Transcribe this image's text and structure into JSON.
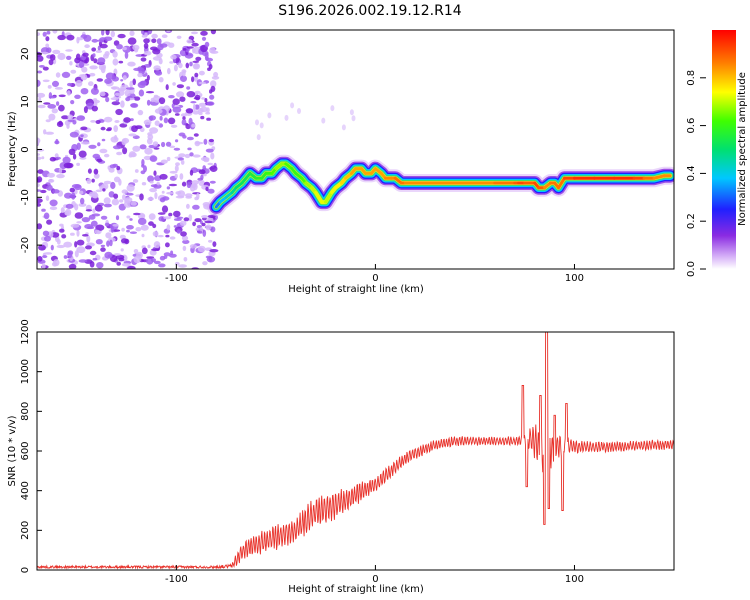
{
  "chart_data": [
    {
      "type": "heatmap",
      "title": "S196.2026.002.19.12.R14",
      "xlabel": "Height of straight line (km)",
      "ylabel": "Frequency (Hz)",
      "xlim": [
        -170,
        150
      ],
      "ylim": [
        -25,
        25
      ],
      "xticks": [
        -100,
        0,
        100
      ],
      "yticks": [
        -20,
        -10,
        0,
        10,
        20
      ],
      "noise_region_x": [
        -170,
        -80
      ],
      "ridge": {
        "x": [
          -80,
          -78,
          -75,
          -72,
          -70,
          -67,
          -65,
          -63,
          -60,
          -57,
          -55,
          -52,
          -50,
          -47,
          -45,
          -42,
          -40,
          -37,
          -35,
          -32,
          -30,
          -27,
          -25,
          -22,
          -20,
          -17,
          -15,
          -12,
          -10,
          -7,
          -5,
          -2,
          0,
          3,
          5,
          8,
          10,
          13,
          15,
          20,
          30,
          40,
          50,
          60,
          65,
          70,
          72,
          75,
          78,
          80,
          82,
          85,
          88,
          90,
          92,
          95,
          100,
          110,
          120,
          130,
          135,
          140,
          145,
          148
        ],
        "y": [
          -12,
          -11,
          -10,
          -9,
          -8,
          -7,
          -6,
          -5,
          -6,
          -6,
          -5,
          -5,
          -4,
          -3,
          -3,
          -4,
          -5,
          -6,
          -7,
          -8,
          -9,
          -11,
          -11,
          -9,
          -8,
          -7,
          -6,
          -5,
          -4,
          -4,
          -5,
          -5,
          -4,
          -5,
          -6,
          -6,
          -6,
          -7,
          -7,
          -7,
          -7,
          -7,
          -7,
          -7,
          -7,
          -7,
          -7,
          -7,
          -7,
          -7,
          -8,
          -8,
          -7,
          -7,
          -8,
          -6,
          -6,
          -6,
          -6,
          -6,
          -6,
          -6,
          -5.5,
          -5.5
        ],
        "amplitude": [
          0.3,
          0.35,
          0.4,
          0.45,
          0.5,
          0.5,
          0.55,
          0.5,
          0.6,
          0.55,
          0.6,
          0.6,
          0.65,
          0.7,
          0.65,
          0.6,
          0.6,
          0.6,
          0.65,
          0.7,
          0.7,
          0.75,
          0.7,
          0.7,
          0.75,
          0.75,
          0.8,
          0.8,
          0.85,
          0.8,
          0.85,
          0.8,
          0.85,
          0.8,
          0.85,
          0.85,
          0.85,
          0.9,
          0.85,
          0.85,
          0.85,
          0.85,
          0.85,
          0.85,
          0.9,
          0.85,
          0.95,
          0.9,
          0.9,
          0.9,
          0.95,
          0.85,
          0.85,
          0.9,
          0.85,
          0.9,
          0.95,
          0.95,
          0.95,
          0.95,
          0.9,
          0.85,
          0.85,
          0.85
        ]
      },
      "colorbar": {
        "label": "Normalized spectral amplitude",
        "range": [
          0,
          1
        ],
        "ticks": [
          "0.0",
          "0.2",
          "0.4",
          "0.6",
          "0.8"
        ]
      }
    },
    {
      "type": "line",
      "xlabel": "Height of straight line (km)",
      "ylabel": "SNR (10 * v/v)",
      "xlim": [
        -170,
        150
      ],
      "ylim": [
        0,
        1200
      ],
      "xticks": [
        -100,
        0,
        100
      ],
      "yticks": [
        0,
        200,
        400,
        600,
        800,
        1000,
        1200
      ],
      "color": "#e8312a",
      "envelope": {
        "x": [
          -170,
          -80,
          -72,
          -70,
          -65,
          -60,
          -55,
          -50,
          -45,
          -40,
          -35,
          -30,
          -25,
          -20,
          -15,
          -10,
          -5,
          0,
          5,
          10,
          15,
          20,
          25,
          30,
          35,
          40,
          50,
          60,
          70,
          75,
          78,
          80,
          85,
          90,
          95,
          100,
          110,
          120,
          130,
          140,
          150
        ],
        "mean": [
          15,
          15,
          20,
          50,
          110,
          130,
          150,
          165,
          180,
          200,
          250,
          290,
          310,
          330,
          350,
          380,
          410,
          430,
          470,
          520,
          560,
          590,
          610,
          630,
          640,
          650,
          650,
          650,
          650,
          655,
          660,
          650,
          600,
          620,
          630,
          620,
          620,
          620,
          625,
          630,
          630
        ],
        "amp": [
          12,
          12,
          20,
          60,
          90,
          100,
          110,
          120,
          120,
          120,
          130,
          130,
          140,
          130,
          110,
          100,
          80,
          70,
          70,
          60,
          60,
          55,
          50,
          45,
          45,
          45,
          40,
          40,
          40,
          50,
          120,
          150,
          230,
          140,
          80,
          60,
          50,
          45,
          45,
          45,
          45
        ]
      },
      "spikes": [
        {
          "x": 74,
          "y": 930
        },
        {
          "x": 76,
          "y": 420
        },
        {
          "x": 83,
          "y": 880
        },
        {
          "x": 85,
          "y": 230
        },
        {
          "x": 86,
          "y": 1200
        },
        {
          "x": 87,
          "y": 310
        },
        {
          "x": 90,
          "y": 780
        },
        {
          "x": 94,
          "y": 300
        },
        {
          "x": 96,
          "y": 840
        }
      ]
    }
  ]
}
